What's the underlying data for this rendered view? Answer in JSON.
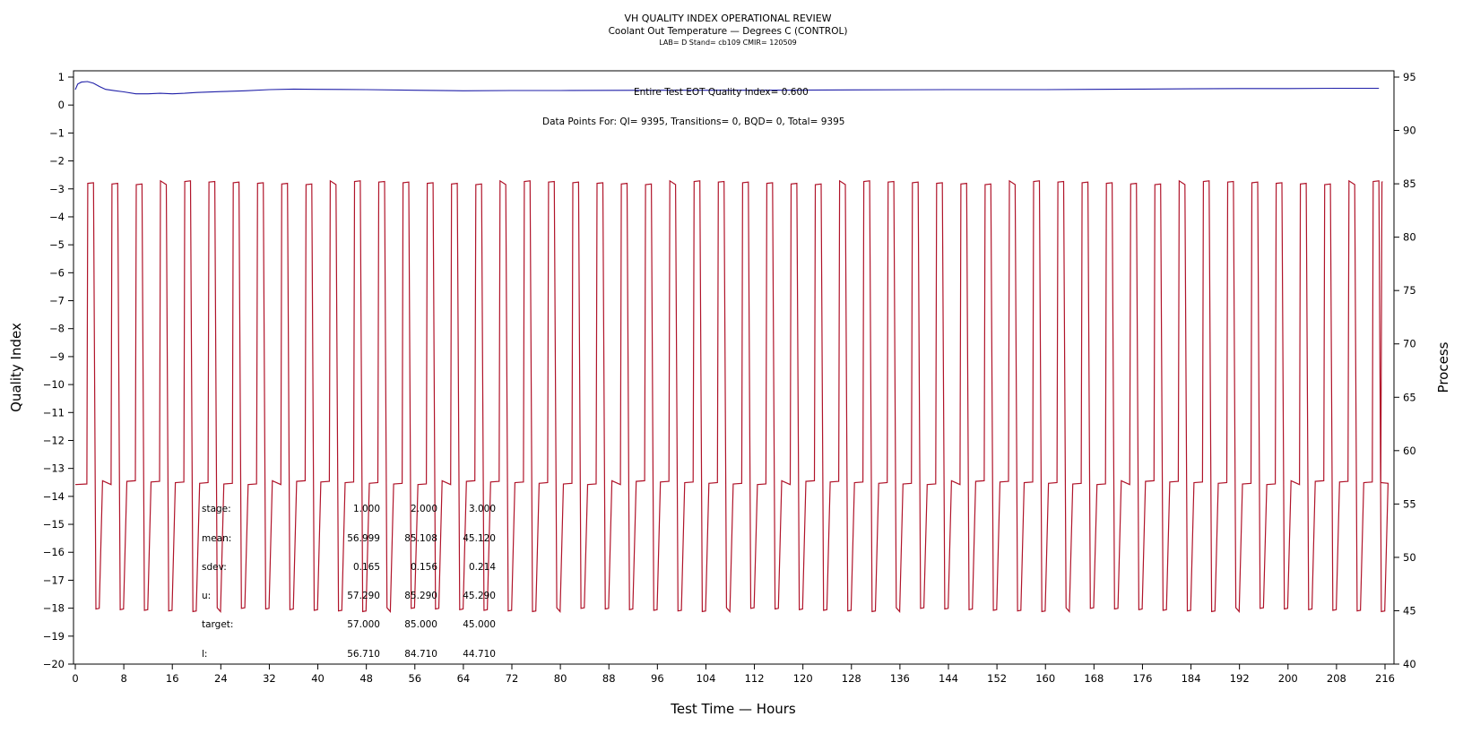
{
  "header": {
    "title": "VH QUALITY INDEX OPERATIONAL REVIEW",
    "subtitle": "Coolant Out Temperature — Degrees C (CONTROL)",
    "info": "LAB= D Stand= cb109 CMIR= 120509"
  },
  "annotations": {
    "eot": "Entire Test EOT Quality Index=   0.600",
    "datapoints": "Data Points For: QI=  9395, Transitions=     0, BQD=     0, Total=  9395"
  },
  "stats": {
    "rows": [
      {
        "label": "stage:",
        "values": [
          "1.000",
          "2.000",
          "3.000"
        ]
      },
      {
        "label": "mean:",
        "values": [
          "56.999",
          "85.108",
          "45.120"
        ]
      },
      {
        "label": "sdev:",
        "values": [
          "0.165",
          "0.156",
          "0.214"
        ]
      },
      {
        "label": "u:",
        "values": [
          "57.290",
          "85.290",
          "45.290"
        ]
      },
      {
        "label": "target:",
        "values": [
          "57.000",
          "85.000",
          "45.000"
        ]
      },
      {
        "label": "l:",
        "values": [
          "56.710",
          "84.710",
          "44.710"
        ]
      }
    ]
  },
  "colors": {
    "quality_index": "#1f1fa8",
    "process": "#b0142a",
    "axis": "#000000"
  },
  "chart_data": {
    "type": "line",
    "title": "VH QUALITY INDEX OPERATIONAL REVIEW",
    "subtitle": "Coolant Out Temperature — Degrees C (CONTROL)",
    "xlabel": "Test Time — Hours",
    "ylabel_left": "Quality Index",
    "ylabel_right": "Process",
    "xlim": [
      0,
      216
    ],
    "ylim_left": [
      -20,
      1
    ],
    "ylim_right": [
      40,
      95
    ],
    "x_ticks": [
      0,
      8,
      16,
      24,
      32,
      40,
      48,
      56,
      64,
      72,
      80,
      88,
      96,
      104,
      112,
      120,
      128,
      136,
      144,
      152,
      160,
      168,
      176,
      184,
      192,
      200,
      208,
      216
    ],
    "y_left_ticks": [
      1,
      0,
      -1,
      -2,
      -3,
      -4,
      -5,
      -6,
      -7,
      -8,
      -9,
      -10,
      -11,
      -12,
      -13,
      -14,
      -15,
      -16,
      -17,
      -18,
      -19,
      -20
    ],
    "y_right_ticks": [
      95,
      90,
      85,
      80,
      75,
      70,
      65,
      60,
      55,
      50,
      45,
      40
    ],
    "grid": false,
    "series": [
      {
        "axis": "left",
        "points": [
          [
            0,
            0.55
          ],
          [
            0.4,
            0.75
          ],
          [
            1,
            0.82
          ],
          [
            2,
            0.84
          ],
          [
            3,
            0.78
          ],
          [
            4,
            0.66
          ],
          [
            5,
            0.56
          ],
          [
            6,
            0.53
          ],
          [
            8,
            0.47
          ],
          [
            10,
            0.4
          ],
          [
            12,
            0.4
          ],
          [
            14,
            0.42
          ],
          [
            16,
            0.4
          ],
          [
            18,
            0.42
          ],
          [
            20,
            0.45
          ],
          [
            24,
            0.48
          ],
          [
            28,
            0.51
          ],
          [
            32,
            0.55
          ],
          [
            36,
            0.57
          ],
          [
            40,
            0.56
          ],
          [
            48,
            0.55
          ],
          [
            56,
            0.53
          ],
          [
            64,
            0.51
          ],
          [
            72,
            0.52
          ],
          [
            80,
            0.52
          ],
          [
            96,
            0.53
          ],
          [
            112,
            0.53
          ],
          [
            128,
            0.54
          ],
          [
            144,
            0.55
          ],
          [
            160,
            0.55
          ],
          [
            168,
            0.56
          ],
          [
            176,
            0.57
          ],
          [
            184,
            0.58
          ],
          [
            192,
            0.59
          ],
          [
            200,
            0.59
          ],
          [
            208,
            0.6
          ],
          [
            215,
            0.6
          ]
        ]
      },
      {
        "axis": "right",
        "cycle_hours": 4,
        "first_cycle_start": 1.9,
        "last_time": 215.3,
        "levels": {
          "hot": 85.1,
          "cold": 45.1,
          "base": 57.0
        },
        "timing": {
          "hot_end": 1.1,
          "cold_start": 1.5,
          "cold_end": 2.05,
          "base_start": 2.6
        }
      }
    ]
  }
}
